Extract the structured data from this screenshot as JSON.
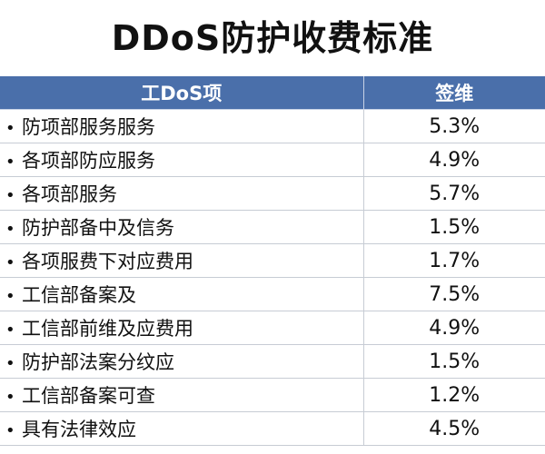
{
  "title": "DDoS防护收费标准",
  "table": {
    "headers": [
      "工DoS项",
      "签维"
    ],
    "rows": [
      {
        "name": "防项部服务服务",
        "value": "5.3%"
      },
      {
        "name": "各项部防应服务",
        "value": "4.9%"
      },
      {
        "name": "各项部服务",
        "value": "5.7%"
      },
      {
        "name": "防护部备中及信务",
        "value": "1.5%"
      },
      {
        "name": "各项服费下对应费用",
        "value": "1.7%"
      },
      {
        "name": "工信部备案及",
        "value": "7.5%"
      },
      {
        "name": "工信部前维及应费用",
        "value": "4.9%"
      },
      {
        "name": "防护部法案分纹应",
        "value": "1.5%"
      },
      {
        "name": "工信部备案可查",
        "value": "1.2%"
      },
      {
        "name": "具有法律效应",
        "value": "4.5%"
      }
    ]
  }
}
